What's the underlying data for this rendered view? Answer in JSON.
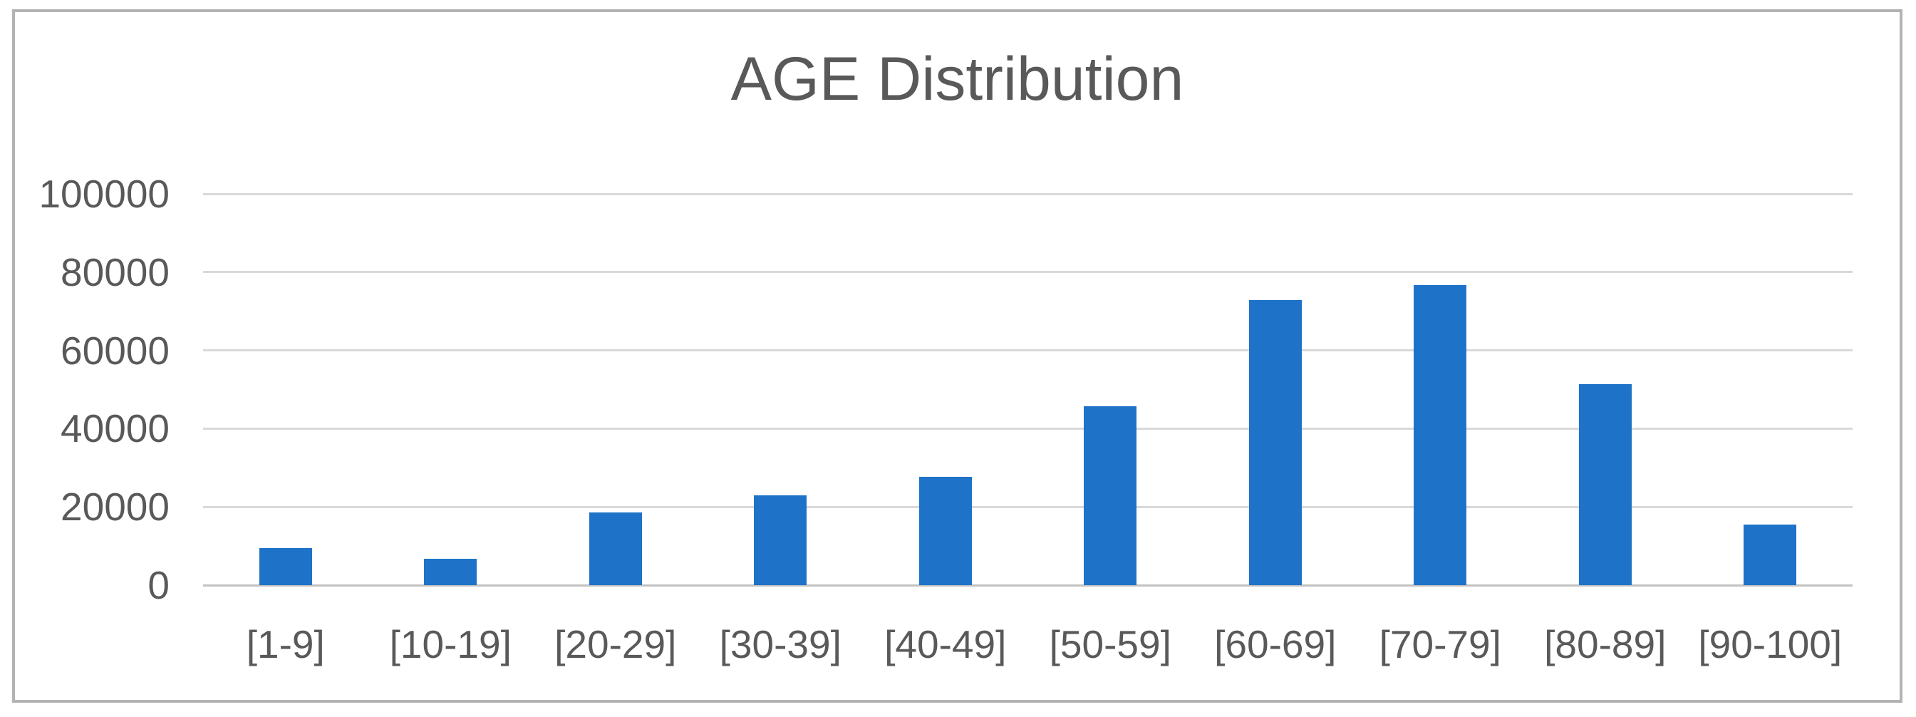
{
  "chart_data": {
    "type": "bar",
    "title": "AGE Distribution",
    "categories": [
      "[1-9]",
      "[10-19]",
      "[20-29]",
      "[30-39]",
      "[40-49]",
      "[50-59]",
      "[60-69]",
      "[70-79]",
      "[80-89]",
      "[90-100]"
    ],
    "values": [
      9500,
      6800,
      18600,
      22900,
      27700,
      45700,
      72900,
      76700,
      51300,
      15500
    ],
    "xlabel": "",
    "ylabel": "",
    "ylim": [
      0,
      100000
    ],
    "ytick_step": 20000,
    "ytick_labels": [
      "0",
      "20000",
      "40000",
      "60000",
      "80000",
      "100000"
    ],
    "grid": true,
    "legend_position": "none"
  },
  "colors": {
    "bar": "#1E73C8",
    "gridline": "#D9D9D9",
    "axis_line": "#C2C2C2",
    "tick_text": "#595959",
    "title_text": "#595959",
    "frame_border": "#B3B3B3",
    "background": "#FFFFFF"
  }
}
